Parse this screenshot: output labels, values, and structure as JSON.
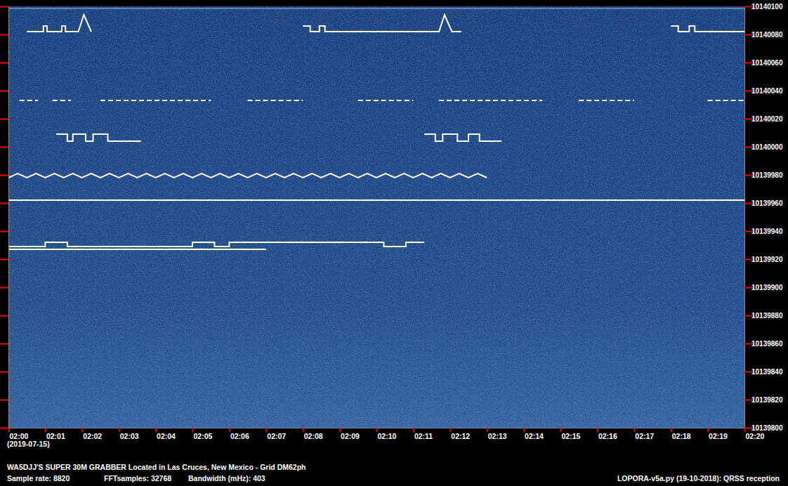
{
  "chart_data": {
    "type": "line",
    "title": "WA5DJJ'S SUPER 30M GRABBER Located in Las Cruces, New Mexico - Grid DM62ph",
    "annotations": [
      "(2019-07-15)",
      "Sample rate: 8820",
      "FFTsamples: 32768",
      "Bandwidth (mHz): 403",
      "LOPORA-v5a.py (19-10-2018): QRSS reception"
    ],
    "xlim": [
      0,
      20
    ],
    "ylim": [
      10139800,
      10140100
    ],
    "xticks": [
      {
        "value": 0,
        "label": "02:00"
      },
      {
        "value": 1,
        "label": "02:01"
      },
      {
        "value": 2,
        "label": "02:02"
      },
      {
        "value": 3,
        "label": "02:03"
      },
      {
        "value": 4,
        "label": "02:04"
      },
      {
        "value": 5,
        "label": "02:05"
      },
      {
        "value": 6,
        "label": "02:06"
      },
      {
        "value": 7,
        "label": "02:07"
      },
      {
        "value": 8,
        "label": "02:08"
      },
      {
        "value": 9,
        "label": "02:09"
      },
      {
        "value": 10,
        "label": "02:10"
      },
      {
        "value": 11,
        "label": "02:11"
      },
      {
        "value": 12,
        "label": "02:12"
      },
      {
        "value": 13,
        "label": "02:13"
      },
      {
        "value": 14,
        "label": "02:14"
      },
      {
        "value": 15,
        "label": "02:15"
      },
      {
        "value": 16,
        "label": "02:16"
      },
      {
        "value": 17,
        "label": "02:17"
      },
      {
        "value": 18,
        "label": "02:18"
      },
      {
        "value": 19,
        "label": "02:19"
      },
      {
        "value": 20,
        "label": "02:20"
      }
    ],
    "yticks": [
      10139800,
      10139820,
      10139840,
      10139860,
      10139880,
      10139900,
      10139920,
      10139940,
      10139960,
      10139980,
      10140000,
      10140020,
      10140040,
      10140060,
      10140080,
      10140100
    ],
    "grid": false,
    "series": [
      {
        "color": "#ffffff",
        "line_style": "solid",
        "x": [
          0,
          2,
          4,
          6,
          8,
          10,
          12,
          14,
          16,
          18,
          20
        ],
        "values": [
          10139962,
          10139962,
          10139962,
          10139962,
          10139962,
          10139962,
          10139962,
          10139962,
          10139962,
          10139962,
          10139962
        ]
      },
      {
        "color": "#ffffff",
        "line_style": "solid",
        "x": [
          0,
          0.25,
          0.5,
          0.75,
          1,
          1.25,
          1.5,
          1.75,
          2,
          2.25,
          2.5,
          2.75,
          3,
          3.25,
          3.5,
          3.75,
          4,
          4.25,
          4.5,
          4.75,
          5,
          5.25,
          5.5,
          5.75,
          6,
          6.25,
          6.5,
          6.75,
          7,
          7.25,
          7.5,
          7.75,
          8,
          8.25,
          8.5,
          8.75,
          9,
          9.25,
          9.5,
          9.75,
          10,
          10.25,
          10.5,
          10.75,
          11,
          11.25,
          11.5,
          11.75,
          12,
          12.25,
          12.5,
          12.75,
          13
        ],
        "values": [
          10139978,
          10139981,
          10139978,
          10139981,
          10139978,
          10139981,
          10139978,
          10139981,
          10139978,
          10139981,
          10139978,
          10139981,
          10139978,
          10139981,
          10139978,
          10139981,
          10139978,
          10139981,
          10139978,
          10139981,
          10139978,
          10139981,
          10139978,
          10139981,
          10139978,
          10139981,
          10139978,
          10139981,
          10139978,
          10139981,
          10139978,
          10139981,
          10139978,
          10139981,
          10139978,
          10139981,
          10139978,
          10139981,
          10139978,
          10139981,
          10139978,
          10139981,
          10139978,
          10139981,
          10139978,
          10139981,
          10139978,
          10139981,
          10139978,
          10139981,
          10139978,
          10139981,
          10139978
        ]
      },
      {
        "color": "#ffffff",
        "line_style": "dashed",
        "x": [
          0.3,
          0.8,
          1.0,
          1.2,
          1.7,
          2.1,
          2.5,
          5.5,
          6.0,
          6.5,
          8.0,
          8.7,
          9.5,
          11.0,
          11.3,
          11.7,
          14.5,
          15.0,
          15.5,
          17.0,
          18.0,
          19.0,
          20
        ],
        "values": [
          10140033,
          10140033,
          null,
          10140033,
          10140033,
          null,
          10140033,
          10140033,
          null,
          10140033,
          10140033,
          null,
          10140033,
          10140033,
          null,
          10140033,
          10140033,
          null,
          10140033,
          10140033,
          null,
          10140033,
          10140033
        ]
      },
      {
        "color": "#ffffff",
        "line_style": "solid",
        "x": [
          0,
          1,
          1,
          1.6,
          1.6,
          5.0,
          5.0,
          5.6,
          5.6,
          6.0,
          6.0,
          10.2,
          10.2,
          10.8,
          10.8,
          11.3
        ],
        "values": [
          10139929,
          10139929,
          10139932,
          10139932,
          10139929,
          10139929,
          10139932,
          10139932,
          10139929,
          10139929,
          10139932,
          10139932,
          10139929,
          10139929,
          10139932,
          10139932
        ]
      },
      {
        "color": "#ffffff",
        "line_style": "solid",
        "x": [
          0,
          1.5,
          3,
          5,
          7
        ],
        "values": [
          10139927,
          10139927,
          10139927,
          10139927,
          10139927
        ]
      },
      {
        "color": "#ffffff",
        "line_style": "solid",
        "x": [
          0.5,
          0.95,
          0.95,
          1.05,
          1.05,
          1.45,
          1.45,
          1.55,
          1.55,
          1.9,
          2.05,
          2.25,
          5,
          8.0,
          8.2,
          8.2,
          8.45,
          8.45,
          8.6,
          8.6,
          11.7,
          11.85,
          12.05,
          12.3,
          15,
          18.0,
          18.2,
          18.2,
          18.5,
          18.5,
          18.65,
          18.65,
          20
        ],
        "values": [
          10140082,
          10140082,
          10140086,
          10140086,
          10140082,
          10140082,
          10140086,
          10140086,
          10140082,
          10140082,
          10140094,
          10140082,
          null,
          10140086,
          10140086,
          10140082,
          10140082,
          10140086,
          10140086,
          10140082,
          10140082,
          10140094,
          10140082,
          10140082,
          null,
          10140086,
          10140086,
          10140082,
          10140082,
          10140086,
          10140086,
          10140082,
          10140082
        ]
      },
      {
        "color": "#ffffff",
        "line_style": "solid",
        "x": [
          1.3,
          1.6,
          1.6,
          1.75,
          1.75,
          2.1,
          2.1,
          2.3,
          2.3,
          2.7,
          2.7,
          3.6,
          7,
          11.3,
          11.6,
          11.6,
          11.8,
          11.8,
          12.2,
          12.2,
          12.5,
          12.5,
          12.8,
          12.8,
          13.4
        ],
        "values": [
          10140009,
          10140009,
          10140004,
          10140004,
          10140009,
          10140009,
          10140004,
          10140004,
          10140009,
          10140009,
          10140004,
          10140004,
          null,
          10140009,
          10140009,
          10140004,
          10140004,
          10140009,
          10140009,
          10140004,
          10140004,
          10140009,
          10140009,
          10140004,
          10140004
        ]
      }
    ]
  }
}
